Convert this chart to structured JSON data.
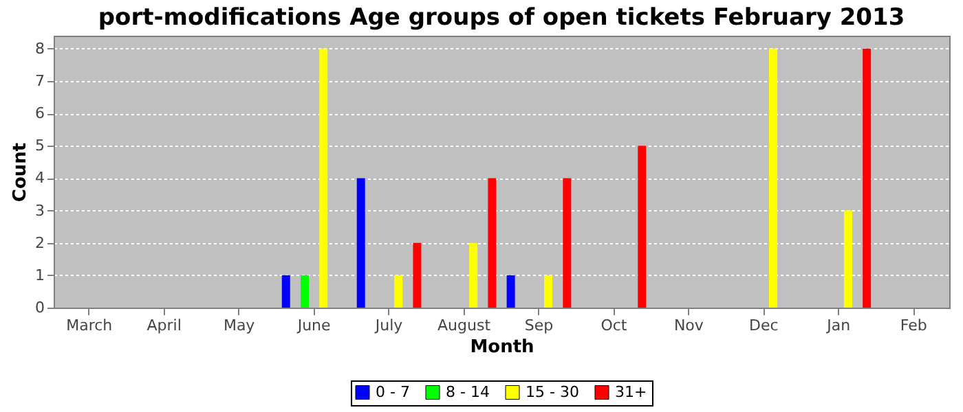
{
  "chart_data": {
    "type": "bar",
    "title": "port-modifications Age groups of open tickets February 2013",
    "xlabel": "Month",
    "ylabel": "Count",
    "categories": [
      "March",
      "April",
      "May",
      "June",
      "July",
      "August",
      "Sep",
      "Oct",
      "Nov",
      "Dec",
      "Jan",
      "Feb"
    ],
    "series": [
      {
        "name": "0 - 7",
        "color": "#0000ff",
        "values": [
          0,
          0,
          0,
          1,
          4,
          0,
          1,
          0,
          0,
          0,
          0,
          0
        ]
      },
      {
        "name": "8 - 14",
        "color": "#00ff00",
        "values": [
          0,
          0,
          0,
          1,
          0,
          0,
          0,
          0,
          0,
          0,
          0,
          0
        ]
      },
      {
        "name": "15 - 30",
        "color": "#ffff00",
        "values": [
          0,
          0,
          0,
          8,
          1,
          2,
          1,
          0,
          0,
          8,
          3,
          0
        ]
      },
      {
        "name": "31+",
        "color": "#ff0000",
        "values": [
          0,
          0,
          0,
          0,
          2,
          4,
          4,
          5,
          0,
          0,
          8,
          0
        ]
      }
    ],
    "ylim": [
      0,
      8.4
    ],
    "yticks": [
      0,
      1,
      2,
      3,
      4,
      5,
      6,
      7,
      8
    ],
    "grid": "y",
    "legend": "bottom"
  }
}
